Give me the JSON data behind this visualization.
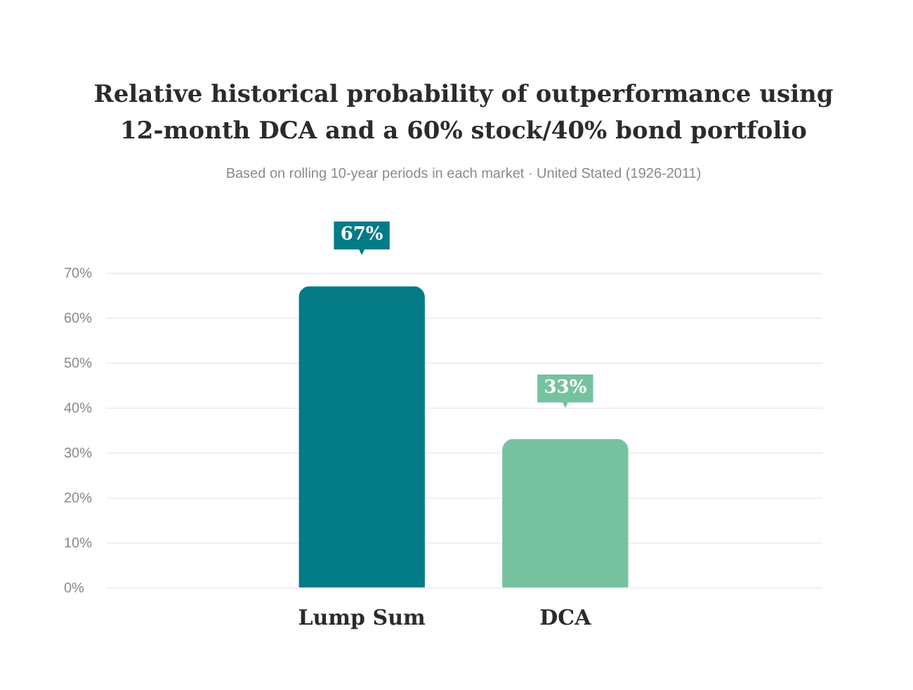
{
  "chart_data": {
    "type": "bar",
    "title": "Relative historical probability of outperformance using 12-month DCA and a 60% stock/40% bond portfolio",
    "subtitle": "Based on rolling 10-year periods in each market · United Stated (1926-2011)",
    "categories": [
      "Lump Sum",
      "DCA"
    ],
    "values": [
      67,
      33
    ],
    "colors": [
      "#037b87",
      "#76c2a0"
    ],
    "value_labels": [
      "67%",
      "33%"
    ],
    "ylim": [
      0,
      70
    ],
    "yticks": [
      {
        "value": 0,
        "label": "0%"
      },
      {
        "value": 10,
        "label": "10%"
      },
      {
        "value": 20,
        "label": "20%"
      },
      {
        "value": 30,
        "label": "30%"
      },
      {
        "value": 40,
        "label": "40%"
      },
      {
        "value": 50,
        "label": "50%"
      },
      {
        "value": 60,
        "label": "60%"
      },
      {
        "value": 70,
        "label": "70%"
      }
    ],
    "grid": "y"
  }
}
